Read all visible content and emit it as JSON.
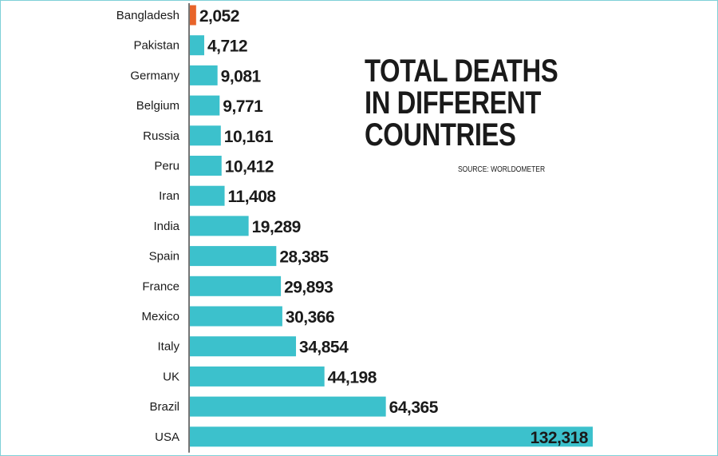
{
  "title_lines": [
    "TOTAL DEATHS",
    "IN DIFFERENT",
    "COUNTRIES"
  ],
  "source": "SOURCE: WORLDOMETER",
  "colors": {
    "bar": "#3cc1cc",
    "highlight": "#e8642a",
    "highlight_text": "#e8642a",
    "text": "#1a1a1a",
    "axis": "#1a1a1a"
  },
  "chart_data": {
    "type": "bar",
    "orientation": "horizontal",
    "title": "TOTAL DEATHS IN DIFFERENT COUNTRIES",
    "source": "SOURCE: WORLDOMETER",
    "categories": [
      "Bangladesh",
      "Pakistan",
      "Germany",
      "Belgium",
      "Russia",
      "Peru",
      "Iran",
      "India",
      "Spain",
      "France",
      "Mexico",
      "Italy",
      "UK",
      "Brazil",
      "USA"
    ],
    "values": [
      2052,
      4712,
      9081,
      9771,
      10161,
      10412,
      11408,
      19289,
      28385,
      29893,
      30366,
      34854,
      44198,
      64365,
      132318
    ],
    "value_labels": [
      "2,052",
      "4,712",
      "9,081",
      "9,771",
      "10,161",
      "10,412",
      "11,408",
      "19,289",
      "28,385",
      "29,893",
      "30,366",
      "34,854",
      "44,198",
      "64,365",
      "132,318"
    ],
    "highlight": "Bangladesh",
    "xlim": [
      0,
      132318
    ],
    "grid": false
  }
}
